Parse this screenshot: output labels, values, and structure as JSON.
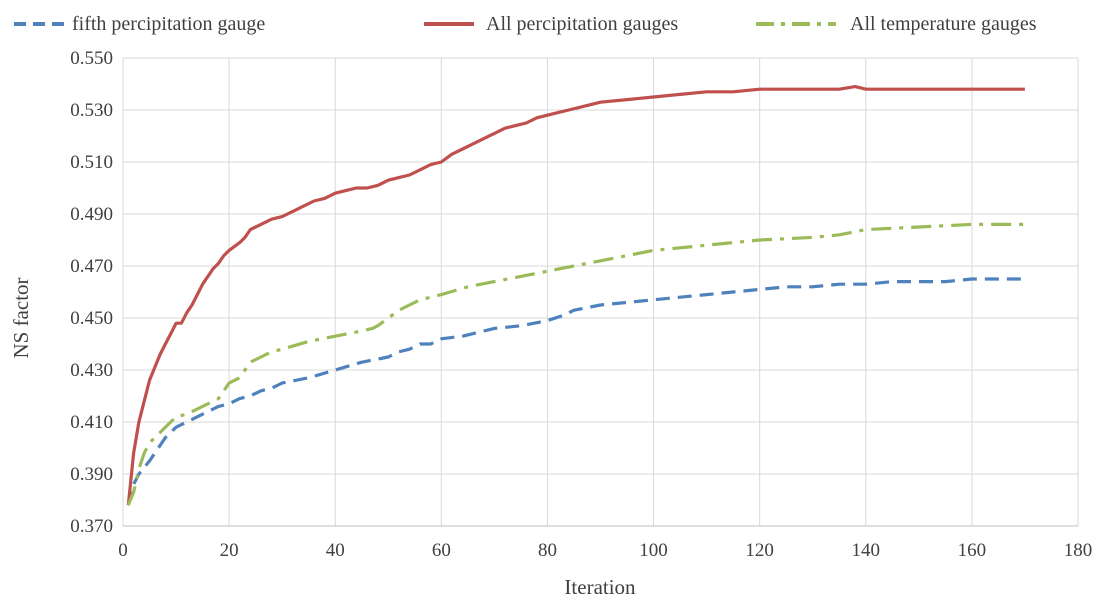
{
  "chart_data": {
    "type": "line",
    "title": "",
    "xlabel": "Iteration",
    "ylabel": "NS factor",
    "xlim": [
      0,
      180
    ],
    "ylim": [
      0.37,
      0.55
    ],
    "x_ticks": [
      "0",
      "20",
      "40",
      "60",
      "80",
      "100",
      "120",
      "140",
      "160",
      "180"
    ],
    "y_ticks": [
      "0.370",
      "0.390",
      "0.410",
      "0.430",
      "0.450",
      "0.470",
      "0.490",
      "0.510",
      "0.530",
      "0.550"
    ],
    "grid": true,
    "legend_position": "top",
    "series": [
      {
        "name": "fifth percipitation gauge",
        "color": "#4f81bd",
        "style": "dashed",
        "x": [
          1,
          2,
          3,
          5,
          7,
          8,
          10,
          12,
          14,
          16,
          18,
          20,
          22,
          24,
          26,
          28,
          30,
          35,
          40,
          45,
          50,
          52,
          54,
          56,
          58,
          60,
          64,
          68,
          70,
          75,
          80,
          83,
          85,
          90,
          95,
          100,
          105,
          110,
          115,
          120,
          125,
          130,
          135,
          140,
          145,
          150,
          155,
          160,
          165,
          170
        ],
        "y": [
          0.378,
          0.386,
          0.39,
          0.395,
          0.401,
          0.404,
          0.408,
          0.41,
          0.412,
          0.414,
          0.416,
          0.417,
          0.419,
          0.42,
          0.422,
          0.423,
          0.425,
          0.427,
          0.43,
          0.433,
          0.435,
          0.437,
          0.438,
          0.44,
          0.44,
          0.442,
          0.443,
          0.445,
          0.446,
          0.447,
          0.449,
          0.451,
          0.453,
          0.455,
          0.456,
          0.457,
          0.458,
          0.459,
          0.46,
          0.461,
          0.462,
          0.462,
          0.463,
          0.463,
          0.464,
          0.464,
          0.464,
          0.465,
          0.465,
          0.465
        ]
      },
      {
        "name": "All percipitation gauges",
        "color": "#c0504d",
        "style": "solid",
        "x": [
          1,
          2,
          3,
          4,
          5,
          6,
          7,
          8,
          9,
          10,
          11,
          12,
          13,
          14,
          15,
          16,
          17,
          18,
          19,
          20,
          22,
          23,
          24,
          26,
          28,
          30,
          32,
          34,
          36,
          38,
          40,
          42,
          44,
          46,
          48,
          50,
          52,
          54,
          56,
          58,
          60,
          62,
          64,
          66,
          68,
          70,
          72,
          74,
          76,
          78,
          80,
          82,
          84,
          86,
          88,
          90,
          95,
          100,
          105,
          110,
          115,
          120,
          125,
          130,
          135,
          138,
          140,
          145,
          150,
          160,
          170
        ],
        "y": [
          0.378,
          0.398,
          0.41,
          0.418,
          0.426,
          0.431,
          0.436,
          0.44,
          0.444,
          0.448,
          0.448,
          0.452,
          0.455,
          0.459,
          0.463,
          0.466,
          0.469,
          0.471,
          0.474,
          0.476,
          0.479,
          0.481,
          0.484,
          0.486,
          0.488,
          0.489,
          0.491,
          0.493,
          0.495,
          0.496,
          0.498,
          0.499,
          0.5,
          0.5,
          0.501,
          0.503,
          0.504,
          0.505,
          0.507,
          0.509,
          0.51,
          0.513,
          0.515,
          0.517,
          0.519,
          0.521,
          0.523,
          0.524,
          0.525,
          0.527,
          0.528,
          0.529,
          0.53,
          0.531,
          0.532,
          0.533,
          0.534,
          0.535,
          0.536,
          0.537,
          0.537,
          0.538,
          0.538,
          0.538,
          0.538,
          0.539,
          0.538,
          0.538,
          0.538,
          0.538,
          0.538
        ]
      },
      {
        "name": "All temperature gauges",
        "color": "#9bbb59",
        "style": "dash-dot",
        "x": [
          1,
          2,
          3,
          4,
          5,
          6,
          7,
          8,
          9,
          10,
          12,
          14,
          16,
          18,
          19,
          20,
          22,
          23,
          24,
          26,
          28,
          30,
          35,
          40,
          45,
          47,
          48,
          50,
          52,
          54,
          56,
          58,
          60,
          65,
          70,
          75,
          80,
          85,
          90,
          95,
          100,
          110,
          120,
          130,
          135,
          140,
          150,
          160,
          170
        ],
        "y": [
          0.378,
          0.383,
          0.392,
          0.398,
          0.402,
          0.404,
          0.406,
          0.408,
          0.41,
          0.412,
          0.413,
          0.415,
          0.417,
          0.419,
          0.422,
          0.425,
          0.427,
          0.43,
          0.433,
          0.435,
          0.437,
          0.438,
          0.441,
          0.443,
          0.445,
          0.446,
          0.447,
          0.45,
          0.453,
          0.455,
          0.457,
          0.458,
          0.459,
          0.462,
          0.464,
          0.466,
          0.468,
          0.47,
          0.472,
          0.474,
          0.476,
          0.478,
          0.48,
          0.481,
          0.482,
          0.484,
          0.485,
          0.486,
          0.486
        ]
      }
    ]
  }
}
